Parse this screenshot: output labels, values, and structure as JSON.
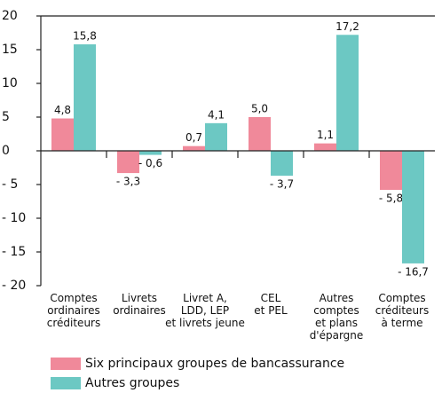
{
  "chart_data": {
    "type": "bar",
    "categories": [
      "Comptes\nordinaires\ncréditeurs",
      "Livrets\nordinaires",
      "Livret A,\nLDD, LEP\net livrets jeune",
      "CEL\net PEL",
      "Autres\ncomptes\net plans\nd'épargne",
      "Comptes\ncréditeurs\nà terme"
    ],
    "series": [
      {
        "name": "Six principaux groupes de bancassurance",
        "color": "#f0899a",
        "values": [
          4.8,
          -3.3,
          0.7,
          5.0,
          1.1,
          -5.8
        ],
        "value_labels": [
          "4,8",
          "- 3,3",
          "0,7",
          "5,0",
          "1,1",
          "- 5,8"
        ]
      },
      {
        "name": "Autres groupes",
        "color": "#6cc8c3",
        "values": [
          15.8,
          -0.6,
          4.1,
          -3.7,
          17.2,
          -16.7
        ],
        "value_labels": [
          "15,8",
          "- 0,6",
          "4,1",
          "- 3,7",
          "17,2",
          "- 16,7"
        ]
      }
    ],
    "ylim": [
      -20,
      20
    ],
    "yticks": [
      {
        "value": -20,
        "label": "- 20"
      },
      {
        "value": -15,
        "label": "- 15"
      },
      {
        "value": -10,
        "label": "- 10"
      },
      {
        "value": -5,
        "label": "- 5"
      },
      0,
      5,
      10,
      15,
      20
    ]
  }
}
